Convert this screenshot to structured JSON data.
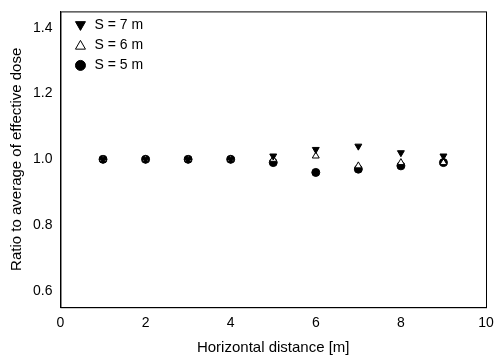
{
  "chart_data": {
    "type": "scatter",
    "x_label": "Horizontal distance [m]",
    "y_label": "Ratio to average of effective dose",
    "xlim": [
      0,
      10
    ],
    "xticks": [
      0,
      2,
      4,
      6,
      8,
      10
    ],
    "ylim": [
      0.55,
      1.45
    ],
    "yticks": [
      0.6,
      0.8,
      {
        "value": 1,
        "label": "1.0"
      },
      1.2,
      1.4
    ],
    "grid": false,
    "legend": "upper left",
    "series": [
      {
        "name": "S = 7 m",
        "color": "#000000",
        "marker": "triangle_down",
        "x": [
          1,
          2,
          3,
          4,
          5,
          6,
          7,
          8,
          9
        ],
        "values": [
          1.0,
          1.0,
          1.0,
          1.0,
          1.01,
          1.03,
          1.04,
          1.02,
          1.01
        ]
      },
      {
        "name": "S = 6 m",
        "color": "#000000",
        "marker": "triangle_open",
        "x": [
          1,
          2,
          3,
          4,
          5,
          6,
          7,
          8,
          9
        ],
        "values": [
          1.0,
          1.0,
          1.0,
          1.0,
          1.0,
          1.01,
          0.98,
          0.99,
          0.99
        ]
      },
      {
        "name": "S = 5 m",
        "color": "#000000",
        "marker": "circle",
        "x": [
          1,
          2,
          3,
          4,
          5,
          6,
          7,
          8,
          9
        ],
        "values": [
          1.0,
          1.0,
          1.0,
          1.0,
          0.99,
          0.96,
          0.97,
          0.98,
          0.99
        ]
      }
    ]
  }
}
